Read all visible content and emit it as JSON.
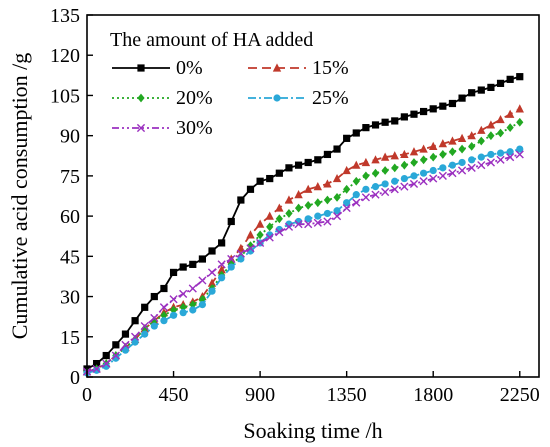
{
  "chart_data": {
    "type": "line",
    "xlabel": "Soaking time /h",
    "ylabel": "Cumulative acid consumption /g",
    "xlim": [
      0,
      2350
    ],
    "ylim": [
      0,
      135
    ],
    "xticks": [
      "0",
      "450",
      "900",
      "1350",
      "1800",
      "2250"
    ],
    "xtick_values": [
      0,
      450,
      900,
      1350,
      1800,
      2250
    ],
    "yticks": [
      "0",
      "15",
      "30",
      "45",
      "60",
      "75",
      "90",
      "105",
      "120",
      "135"
    ],
    "ytick_values": [
      0,
      15,
      30,
      45,
      60,
      75,
      90,
      105,
      120,
      135
    ],
    "legend_title": "The amount of HA added",
    "legend_position": "top-left",
    "series": [
      {
        "name": "0%",
        "color": "#000000",
        "marker": "square",
        "dash": "solid",
        "x": [
          0,
          50,
          100,
          150,
          200,
          250,
          300,
          350,
          400,
          450,
          500,
          550,
          600,
          650,
          700,
          750,
          800,
          850,
          900,
          950,
          1000,
          1050,
          1100,
          1150,
          1200,
          1250,
          1300,
          1350,
          1400,
          1450,
          1500,
          1550,
          1600,
          1650,
          1700,
          1750,
          1800,
          1850,
          1900,
          1950,
          2000,
          2050,
          2100,
          2150,
          2200,
          2250
        ],
        "y": [
          3,
          5,
          8,
          12,
          16,
          21,
          26,
          30,
          33,
          39,
          41,
          42,
          44,
          47,
          50,
          58,
          66,
          70,
          73,
          74,
          76,
          78,
          79,
          80,
          81,
          83,
          85,
          89,
          91,
          93,
          94,
          95,
          95.5,
          97,
          98,
          99,
          100,
          101,
          102,
          104,
          106,
          107,
          108,
          109.5,
          111,
          112
        ]
      },
      {
        "name": "15%",
        "color": "#c0392b",
        "marker": "triangle",
        "dash": "dash",
        "x": [
          0,
          50,
          100,
          150,
          200,
          250,
          300,
          350,
          400,
          450,
          500,
          550,
          600,
          650,
          700,
          750,
          800,
          850,
          900,
          950,
          1000,
          1050,
          1100,
          1150,
          1200,
          1250,
          1300,
          1350,
          1400,
          1450,
          1500,
          1550,
          1600,
          1650,
          1700,
          1750,
          1800,
          1850,
          1900,
          1950,
          2000,
          2050,
          2100,
          2150,
          2200,
          2250
        ],
        "y": [
          2,
          3,
          5,
          8,
          11,
          14,
          18,
          21,
          24,
          26,
          27,
          28,
          30,
          35,
          40,
          44,
          48,
          53,
          57,
          60,
          63,
          66,
          68,
          70,
          71,
          72,
          74,
          77,
          79,
          80,
          81,
          82,
          82.5,
          83,
          84,
          85,
          86,
          87,
          88,
          89,
          90,
          92,
          94,
          96,
          98,
          100
        ]
      },
      {
        "name": "20%",
        "color": "#22a822",
        "marker": "diamond",
        "dash": "dot",
        "x": [
          0,
          50,
          100,
          150,
          200,
          250,
          300,
          350,
          400,
          450,
          500,
          550,
          600,
          650,
          700,
          750,
          800,
          850,
          900,
          950,
          1000,
          1050,
          1100,
          1150,
          1200,
          1250,
          1300,
          1350,
          1400,
          1450,
          1500,
          1550,
          1600,
          1650,
          1700,
          1750,
          1800,
          1850,
          1900,
          1950,
          2000,
          2050,
          2100,
          2150,
          2200,
          2250
        ],
        "y": [
          2,
          3,
          5,
          8,
          11,
          14,
          18,
          21,
          23,
          25,
          26,
          27,
          29,
          33,
          38,
          42,
          45,
          49,
          53,
          56,
          59,
          61,
          63,
          64,
          65,
          66,
          67,
          70,
          73,
          75,
          76,
          77,
          78,
          79,
          80,
          81,
          82,
          83,
          84,
          85,
          86,
          88,
          90,
          91,
          93,
          95
        ]
      },
      {
        "name": "25%",
        "color": "#2aa8d8",
        "marker": "circle",
        "dash": "dashdot",
        "x": [
          0,
          50,
          100,
          150,
          200,
          250,
          300,
          350,
          400,
          450,
          500,
          550,
          600,
          650,
          700,
          750,
          800,
          850,
          900,
          950,
          1000,
          1050,
          1100,
          1150,
          1200,
          1250,
          1300,
          1350,
          1400,
          1450,
          1500,
          1550,
          1600,
          1650,
          1700,
          1750,
          1800,
          1850,
          1900,
          1950,
          2000,
          2050,
          2100,
          2150,
          2200,
          2250
        ],
        "y": [
          1.5,
          2.5,
          4,
          7,
          10,
          13,
          16,
          19,
          21,
          23,
          24,
          25,
          27,
          32,
          37,
          41,
          44,
          47,
          50,
          53,
          55,
          57,
          58,
          59,
          60,
          61,
          62,
          65,
          68,
          70,
          71,
          72,
          73,
          74,
          75,
          76,
          77,
          78,
          79,
          80,
          81,
          82,
          83,
          83.5,
          84,
          85
        ]
      },
      {
        "name": "30%",
        "color": "#9b30c0",
        "marker": "cross",
        "dash": "dashdotdot",
        "x": [
          0,
          50,
          100,
          150,
          200,
          250,
          300,
          350,
          400,
          450,
          500,
          550,
          600,
          650,
          700,
          750,
          800,
          850,
          900,
          950,
          1000,
          1050,
          1100,
          1150,
          1200,
          1250,
          1300,
          1350,
          1400,
          1450,
          1500,
          1550,
          1600,
          1650,
          1700,
          1750,
          1800,
          1850,
          1900,
          1950,
          2000,
          2050,
          2100,
          2150,
          2200,
          2250
        ],
        "y": [
          2,
          3,
          5,
          8,
          12,
          15,
          19,
          22,
          26,
          29,
          31,
          33,
          36,
          39,
          42,
          44,
          46,
          48,
          50,
          52,
          54,
          56,
          57,
          57,
          57.5,
          58,
          60,
          63,
          65,
          67,
          68,
          69,
          70,
          71,
          72,
          73,
          74,
          75,
          76,
          77,
          78,
          79,
          80,
          81,
          82,
          83
        ]
      }
    ]
  }
}
